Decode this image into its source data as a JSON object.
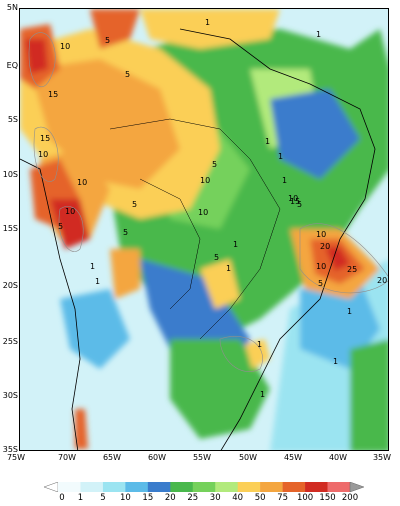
{
  "lat_labels": [
    "5N",
    "EQ",
    "5S",
    "10S",
    "15S",
    "20S",
    "25S",
    "30S",
    "35S"
  ],
  "lon_labels": [
    "75W",
    "70W",
    "65W",
    "60W",
    "55W",
    "50W",
    "45W",
    "40W",
    "35W"
  ],
  "colorbar": {
    "labels": [
      "0",
      "1",
      "5",
      "10",
      "15",
      "20",
      "25",
      "30",
      "40",
      "50",
      "75",
      "100",
      "150",
      "200"
    ],
    "colors": [
      "#f2fbfd",
      "#d2f2f8",
      "#9be4f1",
      "#5cbbe8",
      "#3a7ccc",
      "#49b84c",
      "#75d15b",
      "#b2ea7c",
      "#fbcf57",
      "#f4a640",
      "#e5642a",
      "#d12b22",
      "#ee6b6b"
    ]
  },
  "contour_labels": [
    "10",
    "5",
    "1",
    "15",
    "10",
    "5",
    "15",
    "10",
    "10",
    "5",
    "5",
    "10",
    "5",
    "5",
    "1",
    "1",
    "10",
    "5",
    "10",
    "10",
    "5",
    "1",
    "1",
    "20",
    "10",
    "25",
    "20",
    "5",
    "1",
    "1",
    "1",
    "1",
    "1",
    "15",
    "1",
    "1",
    "1"
  ]
}
